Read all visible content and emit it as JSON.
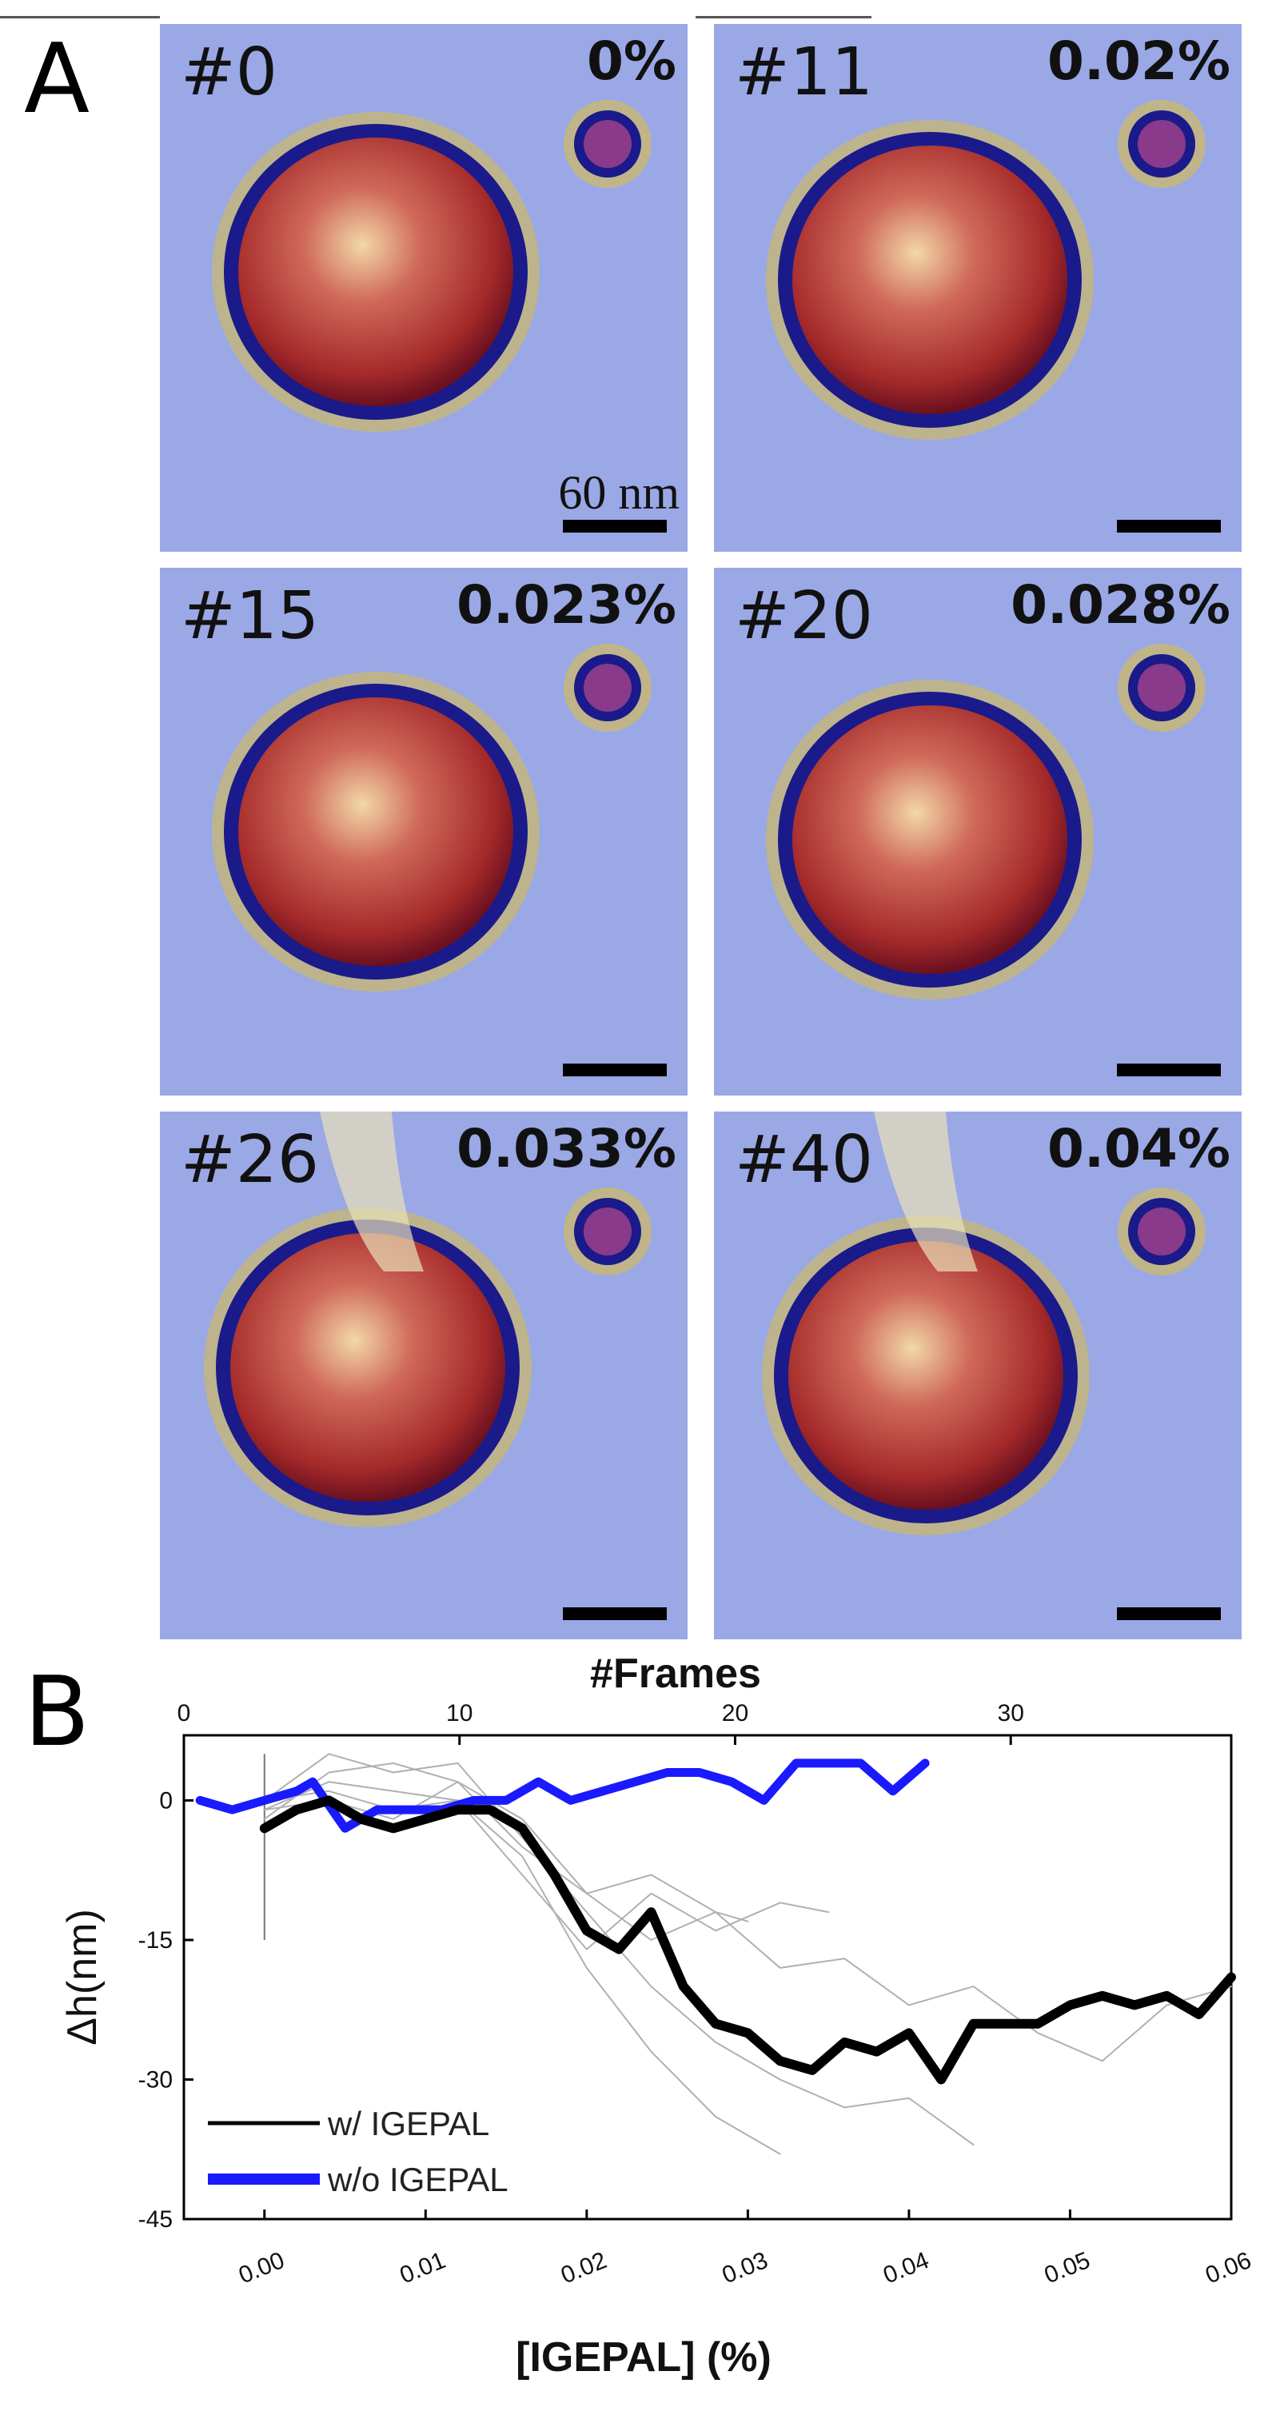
{
  "panel_a": {
    "letter": "A",
    "scale_label": "60 nm",
    "frames": [
      {
        "frame": "#0",
        "percent": "0%"
      },
      {
        "frame": "#11",
        "percent": "0.02%"
      },
      {
        "frame": "#15",
        "percent": "0.023%"
      },
      {
        "frame": "#20",
        "percent": "0.028%"
      },
      {
        "frame": "#26",
        "percent": "0.033%"
      },
      {
        "frame": "#40",
        "percent": "0.04%"
      }
    ],
    "colors": {
      "background": "#9aa8e6",
      "particle": "#a52a2a",
      "rim": "#1a1a8a",
      "halo": "#c8b870"
    }
  },
  "panel_b": {
    "letter": "B"
  },
  "chart_data": {
    "type": "line",
    "title": "",
    "xlabel": "[IGEPAL] (%)",
    "ylabel": "Δh(nm)",
    "x2label": "#Frames",
    "xlim": [
      -0.005,
      0.06
    ],
    "ylim": [
      -45,
      7
    ],
    "x2lim": [
      0,
      38
    ],
    "xticks": [
      "0.00",
      "0.01",
      "0.02",
      "0.03",
      "0.04",
      "0.05",
      "0.06"
    ],
    "x2ticks": [
      "0",
      "10",
      "20",
      "30"
    ],
    "yticks": [
      "0",
      "-15",
      "-30",
      "-45"
    ],
    "legend_position": "bottom-left",
    "series": [
      {
        "name": "w/   IGEPAL",
        "color": "#000000",
        "x": [
          0.0,
          0.002,
          0.004,
          0.006,
          0.008,
          0.01,
          0.012,
          0.014,
          0.016,
          0.018,
          0.02,
          0.022,
          0.024,
          0.026,
          0.028,
          0.03,
          0.032,
          0.034,
          0.036,
          0.038,
          0.04,
          0.042,
          0.044,
          0.046,
          0.048,
          0.05,
          0.052,
          0.054,
          0.056,
          0.058,
          0.06
        ],
        "y": [
          -3,
          -1,
          0,
          -2,
          -3,
          -2,
          -1,
          -1,
          -3,
          -8,
          -14,
          -16,
          -12,
          -20,
          -24,
          -25,
          -28,
          -29,
          -26,
          -27,
          -25,
          -30,
          -24,
          -24,
          -24,
          -22,
          -21,
          -22,
          -21,
          -23,
          -19
        ]
      },
      {
        "name": "w/o IGEPAL",
        "color": "#1a1aff",
        "x": [
          -0.004,
          -0.002,
          0.0,
          0.002,
          0.003,
          0.005,
          0.007,
          0.009,
          0.011,
          0.013,
          0.015,
          0.017,
          0.019,
          0.021,
          0.023,
          0.025,
          0.027,
          0.029,
          0.031,
          0.033,
          0.035,
          0.037,
          0.039,
          0.041
        ],
        "y": [
          0,
          -1,
          0,
          1,
          2,
          -3,
          -1,
          -1,
          -1,
          0,
          0,
          2,
          0,
          1,
          2,
          3,
          3,
          2,
          0,
          4,
          4,
          4,
          1,
          4
        ]
      },
      {
        "name": "",
        "color": "#b0b0b0",
        "x": [
          0.0,
          0.004,
          0.008,
          0.012,
          0.016,
          0.02,
          0.024,
          0.028,
          0.032,
          0.036,
          0.04,
          0.044,
          0.048,
          0.052,
          0.056,
          0.06
        ],
        "y": [
          -2,
          3,
          4,
          2,
          -2,
          -10,
          -15,
          -12,
          -18,
          -17,
          -22,
          -20,
          -25,
          -28,
          -22,
          -20
        ]
      },
      {
        "name": "",
        "color": "#b0b0b0",
        "x": [
          0.0,
          0.004,
          0.008,
          0.012,
          0.016,
          0.02,
          0.024,
          0.028,
          0.032,
          0.036,
          0.04,
          0.044
        ],
        "y": [
          0,
          5,
          3,
          4,
          -4,
          -12,
          -20,
          -26,
          -30,
          -33,
          -32,
          -37
        ]
      },
      {
        "name": "",
        "color": "#b0b0b0",
        "x": [
          0.0,
          0.004,
          0.008,
          0.012,
          0.016,
          0.02,
          0.024,
          0.028,
          0.032
        ],
        "y": [
          -1,
          2,
          1,
          0,
          -6,
          -18,
          -27,
          -34,
          -38
        ]
      },
      {
        "name": "",
        "color": "#b0b0b0",
        "x": [
          0.0,
          0.004,
          0.008,
          0.012,
          0.016,
          0.02,
          0.024,
          0.028,
          0.03
        ],
        "y": [
          -1,
          0,
          -2,
          2,
          -5,
          -10,
          -8,
          -12,
          -13
        ]
      },
      {
        "name": "",
        "color": "#b0b0b0",
        "x": [
          0.0,
          0.004,
          0.008,
          0.012,
          0.016,
          0.02,
          0.024,
          0.028,
          0.032,
          0.035
        ],
        "y": [
          0,
          1,
          -1,
          0,
          -8,
          -16,
          -10,
          -14,
          -11,
          -12
        ]
      }
    ]
  }
}
